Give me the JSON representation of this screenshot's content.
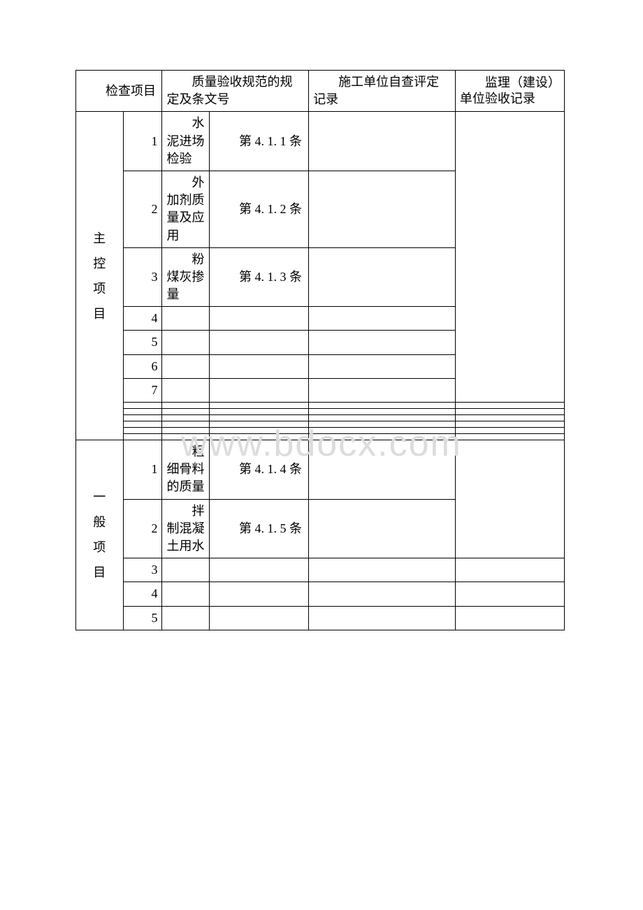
{
  "watermark": "www.bdocx.com",
  "header": {
    "col1": "检查项目",
    "col2": "质量验收规范的规定及条文号",
    "col3": "施工单位自查评定记录",
    "col4": "监理（建设）单位验收记录"
  },
  "section1": {
    "label": "主控项目",
    "rows": [
      {
        "n": "1",
        "name": "水泥进场检验",
        "clause": "第 4. 1. 1 条"
      },
      {
        "n": "2",
        "name": "外加剂质量及应用",
        "clause": "第 4. 1. 2 条"
      },
      {
        "n": "3",
        "name": "粉煤灰掺量",
        "clause": "第 4. 1. 3 条"
      },
      {
        "n": "4",
        "name": "",
        "clause": ""
      },
      {
        "n": "5",
        "name": "",
        "clause": ""
      },
      {
        "n": "6",
        "name": "",
        "clause": ""
      },
      {
        "n": "7",
        "name": "",
        "clause": ""
      },
      {
        "n": "",
        "name": "",
        "clause": ""
      },
      {
        "n": "",
        "name": "",
        "clause": ""
      },
      {
        "n": "",
        "name": "",
        "clause": ""
      },
      {
        "n": "",
        "name": "",
        "clause": ""
      },
      {
        "n": "",
        "name": "",
        "clause": ""
      },
      {
        "n": "",
        "name": "",
        "clause": ""
      }
    ]
  },
  "section2": {
    "label": "一般项目",
    "rows": [
      {
        "n": "1",
        "name": "粗细骨料的质量",
        "clause": "第 4. 1. 4 条"
      },
      {
        "n": "2",
        "name": "拌制混凝土用水",
        "clause": "第 4. 1. 5 条"
      },
      {
        "n": "3",
        "name": "",
        "clause": ""
      },
      {
        "n": "4",
        "name": "",
        "clause": ""
      },
      {
        "n": "5",
        "name": "",
        "clause": ""
      }
    ]
  }
}
